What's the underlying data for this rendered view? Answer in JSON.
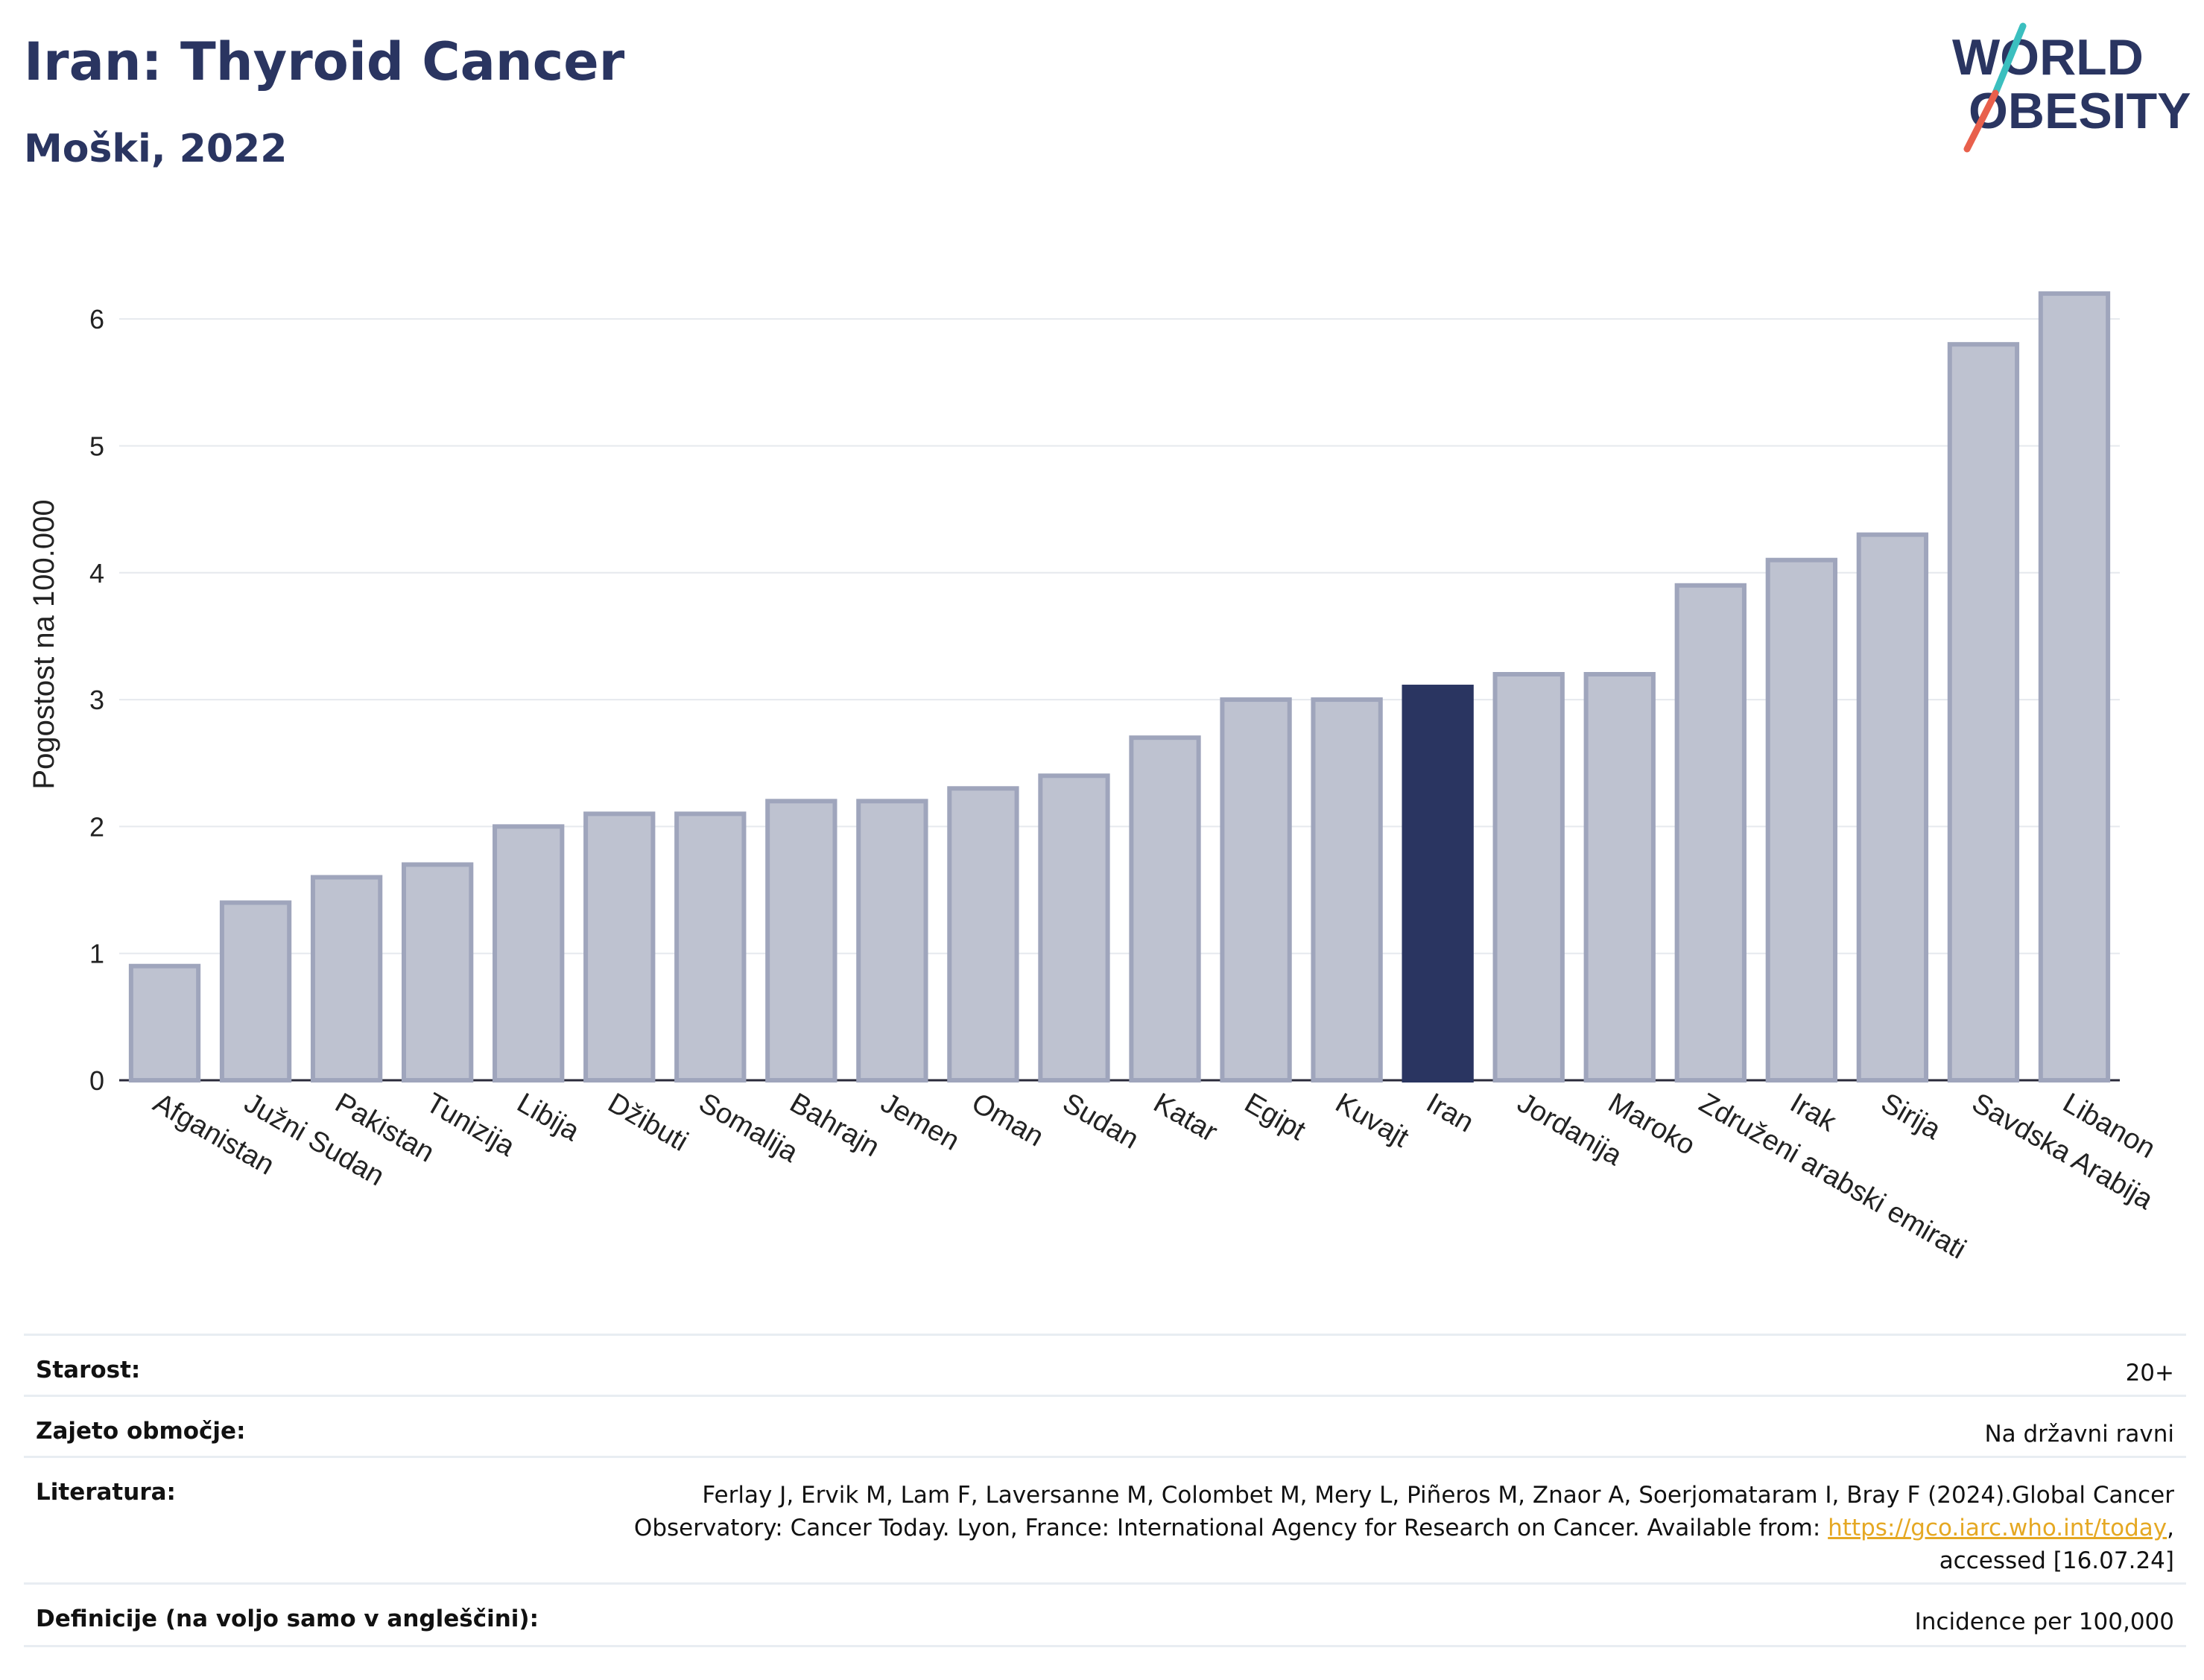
{
  "header": {
    "title": "Iran: Thyroid Cancer",
    "subtitle": "Moški, 2022"
  },
  "logo": {
    "line1": "WORLD",
    "line2": "OBESITY",
    "accent_teal": "#3bbfbf",
    "accent_coral": "#e8604c"
  },
  "colors": {
    "bar": "#bec2d0",
    "bar_border": "#9fa5bc",
    "highlight": "#2a3561",
    "grid": "#e6e9ee"
  },
  "chart_data": {
    "type": "bar",
    "ylabel": "Pogostost na 100.000",
    "ylim": [
      0,
      6.4
    ],
    "yticks": [
      0,
      1,
      2,
      3,
      4,
      5,
      6
    ],
    "grid": true,
    "highlight": "Iran",
    "categories": [
      "Afganistan",
      "Južni Sudan",
      "Pakistan",
      "Tunizija",
      "Libija",
      "Džibuti",
      "Somalija",
      "Bahrajn",
      "Jemen",
      "Oman",
      "Sudan",
      "Katar",
      "Egipt",
      "Kuvajt",
      "Iran",
      "Jordanija",
      "Maroko",
      "Združeni arabski emirati",
      "Irak",
      "Sirija",
      "Savdska Arabija",
      "Libanon"
    ],
    "values": [
      0.9,
      1.4,
      1.6,
      1.7,
      2.0,
      2.1,
      2.1,
      2.2,
      2.2,
      2.3,
      2.4,
      2.7,
      3.0,
      3.0,
      3.1,
      3.2,
      3.2,
      3.9,
      4.1,
      4.3,
      5.8,
      6.2
    ]
  },
  "info": {
    "age_label": "Starost:",
    "age_value": "20+",
    "coverage_label": "Zajeto območje:",
    "coverage_value": "Na državni ravni",
    "references_label": "Literatura:",
    "references_line1": "Ferlay J, Ervik M, Lam F, Laversanne M, Colombet M, Mery L, Piñeros M, Znaor A, Soerjomataram I, Bray F (2024).Global Cancer",
    "references_line2": "Observatory: Cancer Today. Lyon, France: International Agency for Research on Cancer. Available from: ",
    "references_link": "https://gco.iarc.who.int/today",
    "references_line2_end": ",",
    "references_line3": "accessed [16.07.24]",
    "definitions_label": "Definicije (na voljo samo v angleščini):",
    "definitions_value": "Incidence per 100,000"
  }
}
